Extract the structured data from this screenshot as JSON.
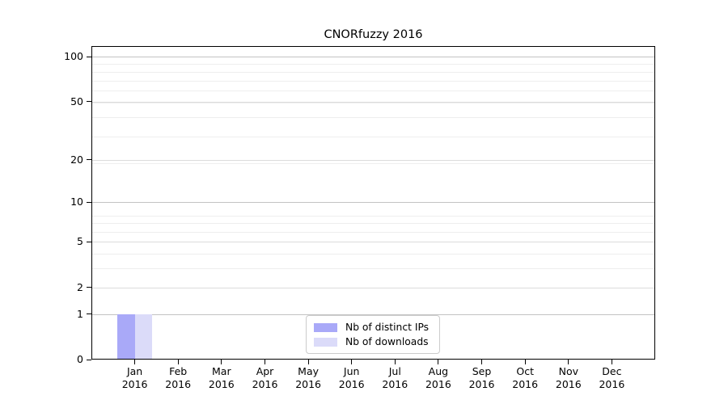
{
  "chart": {
    "title": "CNORfuzzy 2016"
  },
  "chart_data": {
    "type": "bar",
    "title": "CNORfuzzy 2016",
    "categories": [
      "Jan 2016",
      "Feb 2016",
      "Mar 2016",
      "Apr 2016",
      "May 2016",
      "Jun 2016",
      "Jul 2016",
      "Aug 2016",
      "Sep 2016",
      "Oct 2016",
      "Nov 2016",
      "Dec 2016"
    ],
    "series": [
      {
        "name": "Nb of distinct IPs",
        "color": "#a9a9f8",
        "values": [
          1,
          0,
          0,
          0,
          0,
          0,
          0,
          0,
          0,
          0,
          0,
          0
        ]
      },
      {
        "name": "Nb of downloads",
        "color": "#dbdbf9",
        "values": [
          1,
          0,
          0,
          0,
          0,
          0,
          0,
          0,
          0,
          0,
          0,
          0
        ]
      }
    ],
    "xlabel": "",
    "ylabel": "",
    "yscale": "log1p",
    "yticks": [
      0,
      1,
      2,
      5,
      10,
      20,
      50,
      100
    ],
    "ylim": [
      0,
      118
    ],
    "grid": {
      "horizontal_major": true,
      "horizontal_minor": true,
      "vertical": false
    },
    "legend_position": "lower center",
    "colors": {
      "grid_major_emphasis": "#c3c3c3",
      "grid_major": "#dcdcdc",
      "grid_minor": "#eeeeee",
      "axis": "#000000",
      "background": "#ffffff"
    }
  }
}
